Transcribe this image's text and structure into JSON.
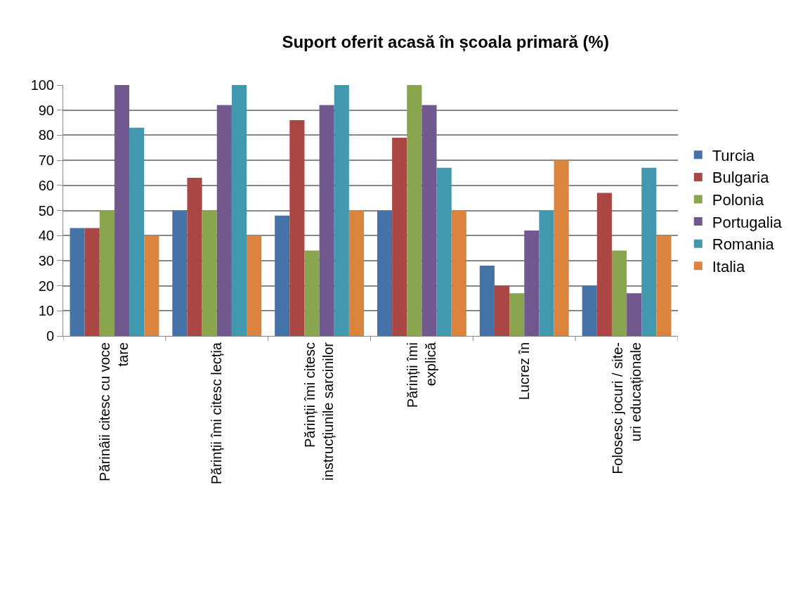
{
  "chart_data": {
    "type": "bar",
    "title": "Suport oferit acasă în școala primară (%)",
    "categories": [
      "Părinâii citesc cu voce\ntare",
      "Părinții îmi citesc lecția",
      "Părinții îmi citesc\ninstrucțiunile sarcinilor",
      "Părinții îmi\nexplică",
      "Lucrez în",
      "Folosesc jocuri / site-\nuri educaționale"
    ],
    "series": [
      {
        "name": "Turcia",
        "color": "#4572a7",
        "values": [
          43,
          50,
          48,
          50,
          28,
          20
        ]
      },
      {
        "name": "Bulgaria",
        "color": "#aa4643",
        "values": [
          43,
          63,
          86,
          79,
          20,
          57
        ]
      },
      {
        "name": "Polonia",
        "color": "#89a54e",
        "values": [
          50,
          50,
          34,
          100,
          17,
          34
        ]
      },
      {
        "name": "Portugalia",
        "color": "#71588f",
        "values": [
          100,
          92,
          92,
          92,
          42,
          17
        ]
      },
      {
        "name": "Romania",
        "color": "#4198af",
        "values": [
          83,
          100,
          100,
          67,
          50,
          67
        ]
      },
      {
        "name": "Italia",
        "color": "#db843d",
        "values": [
          40,
          40,
          50,
          50,
          70,
          40
        ]
      }
    ],
    "ylim": [
      0,
      100
    ],
    "yticks": [
      0,
      10,
      20,
      30,
      40,
      50,
      60,
      70,
      80,
      90,
      100
    ],
    "grid": "y",
    "legend": "right"
  }
}
